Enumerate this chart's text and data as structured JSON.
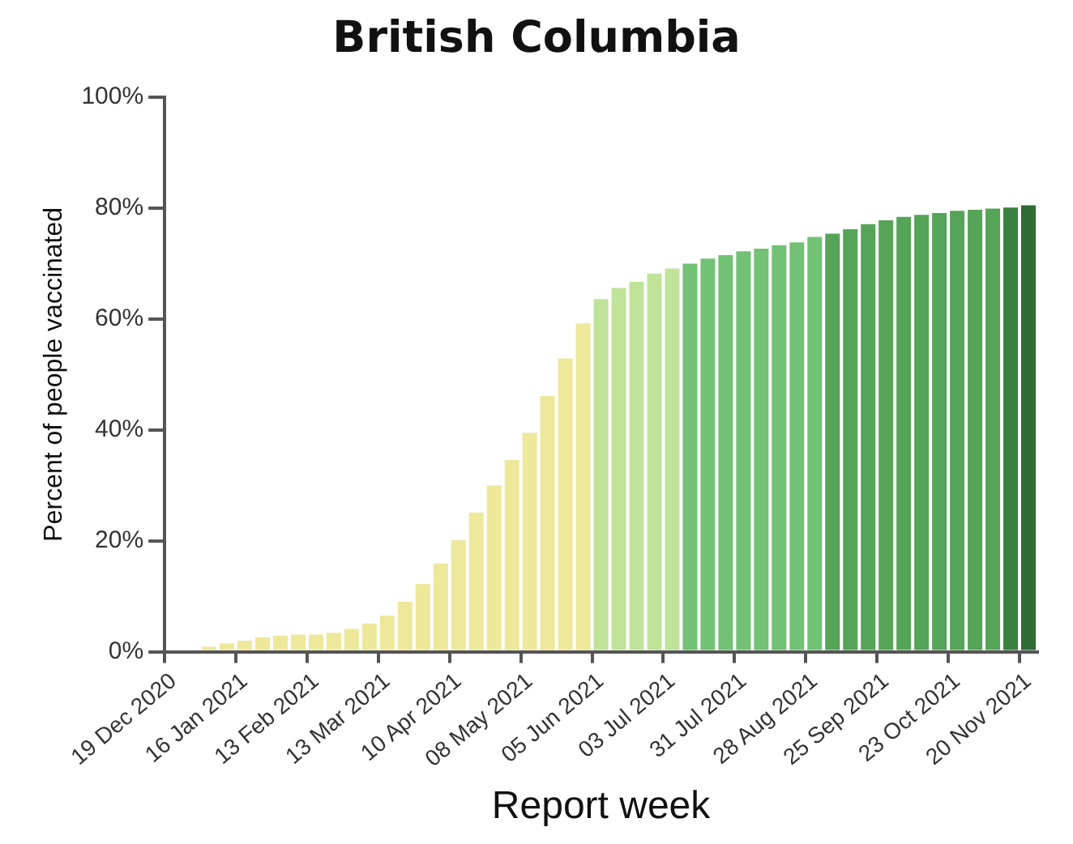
{
  "chart_data": {
    "type": "bar",
    "title": "British Columbia",
    "xlabel": "Report week",
    "ylabel": "Percent of people vaccinated",
    "categories": [
      "19 Dec 2020",
      null,
      null,
      null,
      "16 Jan 2021",
      null,
      null,
      null,
      "13 Feb 2021",
      null,
      null,
      null,
      "13 Mar 2021",
      null,
      null,
      null,
      "10 Apr 2021",
      null,
      null,
      null,
      "08 May 2021",
      null,
      null,
      null,
      "05 Jun 2021",
      null,
      null,
      null,
      "03 Jul 2021",
      null,
      null,
      null,
      "31 Jul 2021",
      null,
      null,
      null,
      "28 Aug 2021",
      null,
      null,
      null,
      "25 Sep 2021",
      null,
      null,
      null,
      "23 Oct 2021",
      null,
      null,
      null,
      "20 Nov 2021"
    ],
    "values": [
      0,
      null,
      0.9,
      1.5,
      2.0,
      2.6,
      2.9,
      3.1,
      3.1,
      3.4,
      4.1,
      5.1,
      6.5,
      9.0,
      12.2,
      15.9,
      20.1,
      25.1,
      30.0,
      34.6,
      39.5,
      46.1,
      52.9,
      59.2,
      63.6,
      65.6,
      66.7,
      68.2,
      69.1,
      70.0,
      70.9,
      71.5,
      72.2,
      72.7,
      73.3,
      73.8,
      74.8,
      75.4,
      76.2,
      77.1,
      77.8,
      78.4,
      78.8,
      79.1,
      79.5,
      79.7,
      79.9,
      80.1,
      80.5
    ],
    "colors": [
      "#ede89a",
      "#ede89a",
      "#ede89a",
      "#ede89a",
      "#ede89a",
      "#ede89a",
      "#ede89a",
      "#ede89a",
      "#ede89a",
      "#ede89a",
      "#ede89a",
      "#ede89a",
      "#ede89a",
      "#ede89a",
      "#ede89a",
      "#ede89a",
      "#ede89a",
      "#ede89a",
      "#ede89a",
      "#ede89a",
      "#ede89a",
      "#ede89a",
      "#ede89a",
      "#ede89a",
      "#c0e39a",
      "#c0e39a",
      "#c0e39a",
      "#c0e39a",
      "#c0e39a",
      "#72c174",
      "#72c174",
      "#72c174",
      "#72c174",
      "#72c174",
      "#72c174",
      "#72c174",
      "#72c174",
      "#55a457",
      "#55a457",
      "#55a457",
      "#55a457",
      "#55a457",
      "#55a457",
      "#55a457",
      "#55a457",
      "#55a457",
      "#55a457",
      "#3a8040",
      "#2f6b35"
    ],
    "ylim": [
      0,
      100
    ],
    "yticks": [
      {
        "value": 0,
        "label": "0%"
      },
      {
        "value": 20,
        "label": "20%"
      },
      {
        "value": 40,
        "label": "40%"
      },
      {
        "value": 60,
        "label": "60%"
      },
      {
        "value": 80,
        "label": "80%"
      },
      {
        "value": 100,
        "label": "100%"
      }
    ],
    "grid": false,
    "legend": false
  }
}
